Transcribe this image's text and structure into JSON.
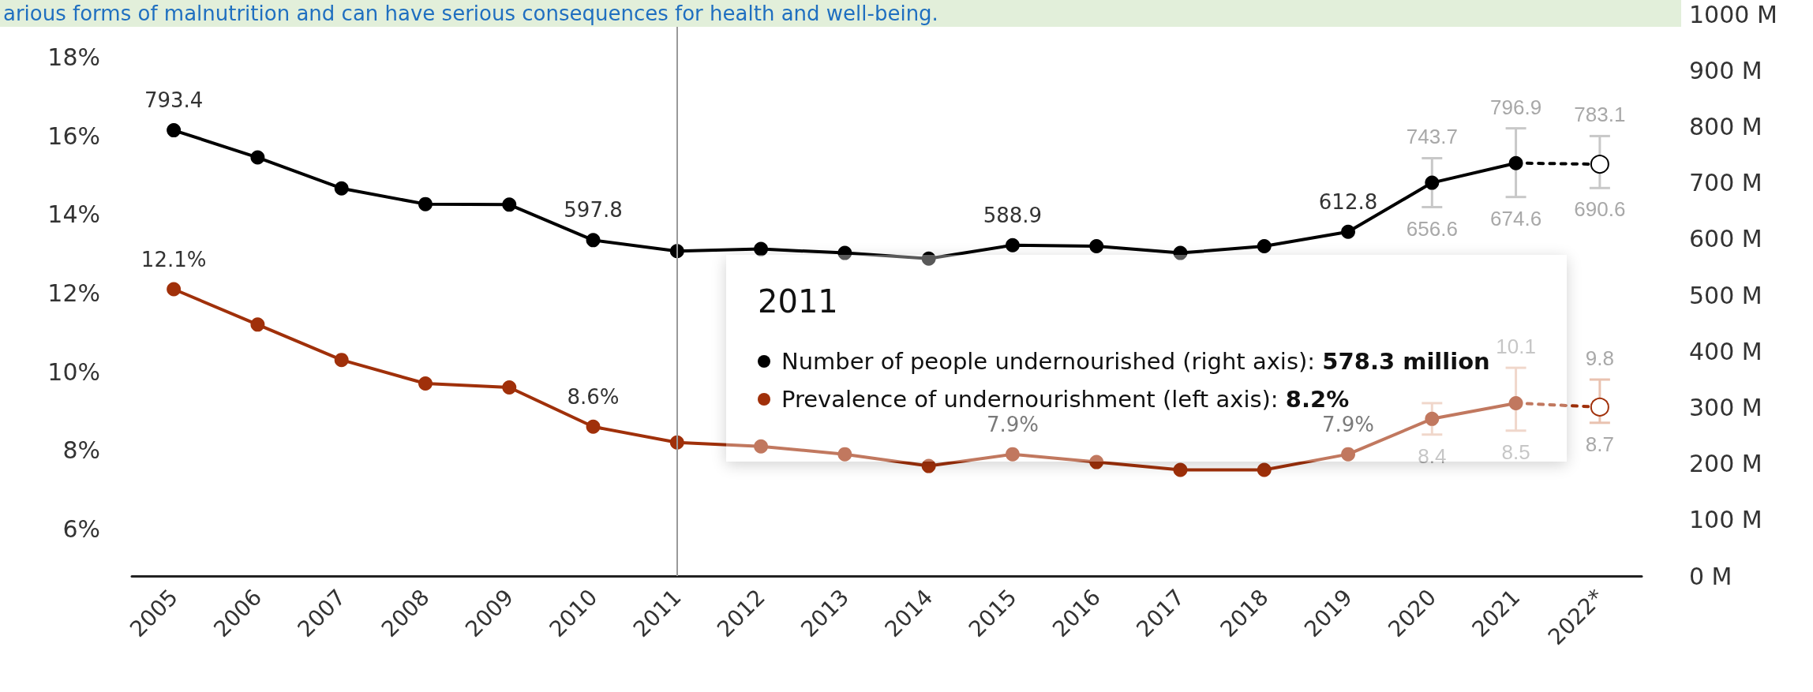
{
  "chart_data": {
    "type": "line",
    "annotations": [
      "arious forms of malnutrition and can have serious consequences for health and well-being.",
      "2011",
      "Number of people undernourished (right axis): 578.3 million",
      "Prevalence of undernourishment (left axis): 8.2%",
      "743.7",
      "656.6",
      "796.9",
      "674.6",
      "783.1",
      "690.6",
      "8.4",
      "10.1",
      "8.5",
      "9.8",
      "8.7"
    ],
    "categories": [
      "2005",
      "2006",
      "2007",
      "2008",
      "2009",
      "2010",
      "2011",
      "2012",
      "2013",
      "2014",
      "2015",
      "2016",
      "2017",
      "2018",
      "2019",
      "2020",
      "2021",
      "2022*"
    ],
    "series": [
      {
        "color": "#000000",
        "axis": "y2",
        "values": [
          793.4,
          745,
          690,
          662,
          661,
          597.8,
          578.3,
          582,
          575,
          565,
          588.9,
          587,
          575,
          587,
          612.8,
          700,
          735,
          null
        ],
        "errors": [
          null,
          null,
          null,
          null,
          null,
          null,
          null,
          null,
          null,
          null,
          null,
          null,
          null,
          null,
          null,
          [
            656.6,
            743.7
          ],
          [
            674.6,
            796.9
          ],
          null
        ],
        "value_labels": [
          "793.4",
          null,
          null,
          null,
          null,
          "597.8",
          null,
          null,
          null,
          null,
          "588.9",
          null,
          null,
          null,
          "612.8",
          null,
          null,
          null
        ]
      },
      {
        "color": "#000000",
        "axis": "y2",
        "line_style": "dotted",
        "values": [
          null,
          null,
          null,
          null,
          null,
          null,
          null,
          null,
          null,
          null,
          null,
          null,
          null,
          null,
          null,
          null,
          735,
          733
        ],
        "errors": [
          null,
          null,
          null,
          null,
          null,
          null,
          null,
          null,
          null,
          null,
          null,
          null,
          null,
          null,
          null,
          null,
          null,
          [
            690.6,
            783.1
          ]
        ]
      },
      {
        "color": "#a0300a",
        "values": [
          12.1,
          11.2,
          10.3,
          9.7,
          9.6,
          8.6,
          8.2,
          8.1,
          7.9,
          7.6,
          7.9,
          7.7,
          7.5,
          7.5,
          7.9,
          8.8,
          9.2,
          null
        ],
        "errors": [
          null,
          null,
          null,
          null,
          null,
          null,
          null,
          null,
          null,
          null,
          null,
          null,
          null,
          null,
          null,
          [
            8.4,
            9.2
          ],
          [
            8.5,
            10.1
          ],
          null
        ],
        "value_labels": [
          "12.1%",
          null,
          null,
          null,
          null,
          "8.6%",
          null,
          null,
          null,
          null,
          "7.9%",
          null,
          null,
          null,
          "7.9%",
          null,
          null,
          null
        ]
      },
      {
        "color": "#a0300a",
        "line_style": "dotted",
        "values": [
          null,
          null,
          null,
          null,
          null,
          null,
          null,
          null,
          null,
          null,
          null,
          null,
          null,
          null,
          null,
          null,
          9.2,
          9.1
        ],
        "errors": [
          null,
          null,
          null,
          null,
          null,
          null,
          null,
          null,
          null,
          null,
          null,
          null,
          null,
          null,
          null,
          null,
          null,
          [
            8.7,
            9.8
          ]
        ]
      }
    ],
    "ylim": [
      4.8,
      19.1
    ],
    "yticks": [
      {
        "value": 6,
        "label": "6%"
      },
      {
        "value": 8,
        "label": "8%"
      },
      {
        "value": 10,
        "label": "10%"
      },
      {
        "value": 12,
        "label": "12%"
      },
      {
        "value": 14,
        "label": "14%"
      },
      {
        "value": 16,
        "label": "16%"
      },
      {
        "value": 18,
        "label": "18%"
      }
    ],
    "y2lim": [
      0,
      1000
    ],
    "y2ticks": [
      {
        "value": 0,
        "label": "0 M"
      },
      {
        "value": 100,
        "label": "100 M"
      },
      {
        "value": 200,
        "label": "200 M"
      },
      {
        "value": 300,
        "label": "300 M"
      },
      {
        "value": 400,
        "label": "400 M"
      },
      {
        "value": 500,
        "label": "500 M"
      },
      {
        "value": 600,
        "label": "600 M"
      },
      {
        "value": 700,
        "label": "700 M"
      },
      {
        "value": 800,
        "label": "800 M"
      },
      {
        "value": 900,
        "label": "900 M"
      },
      {
        "value": 1000,
        "label": "1000 M"
      }
    ],
    "ref_lines": [
      {
        "axis": "x",
        "value": "2011",
        "color": "#999999"
      }
    ],
    "marker": "circle",
    "line_style": "solid"
  }
}
